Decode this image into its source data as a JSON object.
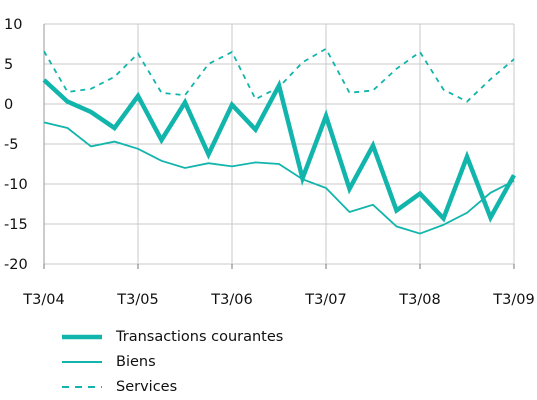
{
  "chart_data": {
    "type": "line",
    "title": "",
    "xlabel": "",
    "ylabel": "",
    "ylim": [
      -20,
      10
    ],
    "yticks": [
      -20,
      -15,
      -10,
      -5,
      0,
      5,
      10
    ],
    "grid": true,
    "legend_position": "bottom-left",
    "x_tick_labels": [
      "T3/04",
      "T3/05",
      "T3/06",
      "T3/07",
      "T3/08",
      "T3/09"
    ],
    "x": [
      "T3/04",
      "T4/04",
      "T1/05",
      "T2/05",
      "T3/05",
      "T4/05",
      "T1/06",
      "T2/06",
      "T3/06",
      "T4/06",
      "T1/07",
      "T2/07",
      "T3/07",
      "T4/07",
      "T1/08",
      "T2/08",
      "T3/08",
      "T4/08",
      "T1/09",
      "T2/09",
      "T3/09"
    ],
    "series": [
      {
        "name": "Transactions courantes",
        "style": "thick",
        "color": "#12b5ab",
        "values": [
          3.0,
          0.3,
          -1.0,
          -3.0,
          1.0,
          -4.5,
          0.2,
          -6.3,
          -0.1,
          -3.2,
          2.3,
          -9.3,
          -1.5,
          -10.6,
          -5.2,
          -13.3,
          -11.2,
          -14.3,
          -6.6,
          -14.2,
          -8.9
        ]
      },
      {
        "name": "Biens",
        "style": "thin",
        "color": "#12b5ab",
        "values": [
          -2.3,
          -3.0,
          -5.3,
          -4.7,
          -5.6,
          -7.1,
          -8.0,
          -7.4,
          -7.8,
          -7.3,
          -7.5,
          -9.4,
          -10.5,
          -13.5,
          -12.6,
          -15.3,
          -16.2,
          -15.1,
          -13.6,
          -11.1,
          -9.6
        ]
      },
      {
        "name": "Services",
        "style": "dashed",
        "color": "#12b5ab",
        "values": [
          6.6,
          1.5,
          1.9,
          3.4,
          6.3,
          1.4,
          1.1,
          5.0,
          6.5,
          0.6,
          2.1,
          5.2,
          6.9,
          1.4,
          1.7,
          4.4,
          6.5,
          1.8,
          0.3,
          3.1,
          5.6
        ]
      }
    ]
  }
}
